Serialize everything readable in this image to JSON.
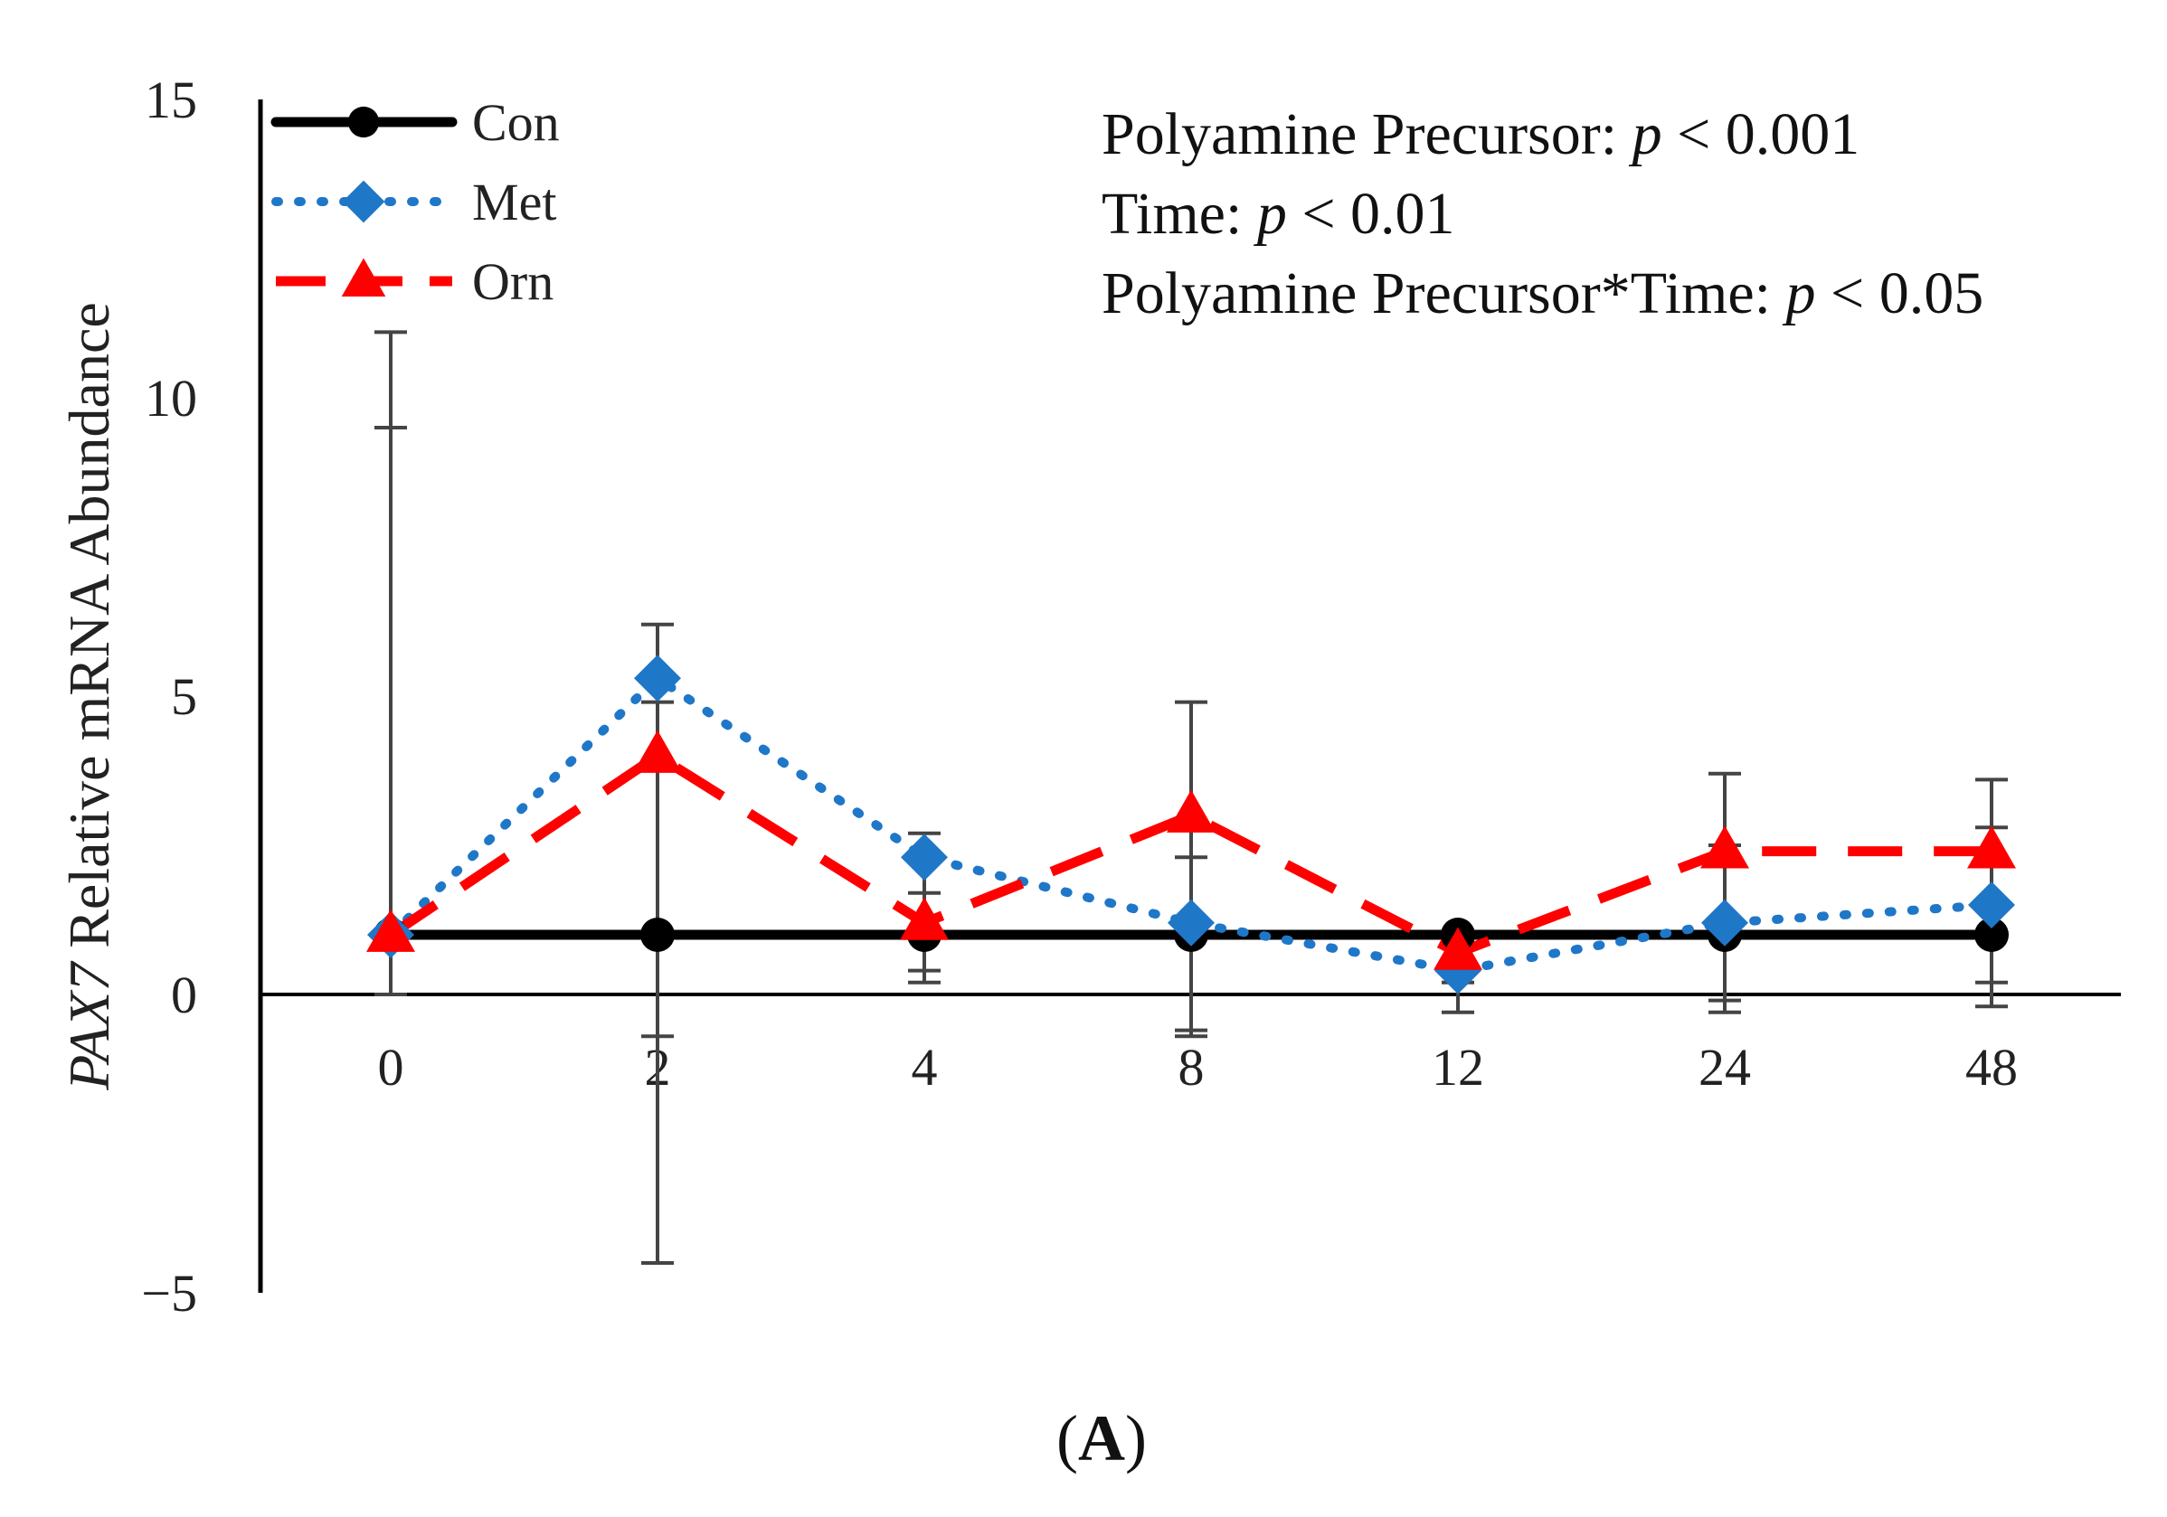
{
  "chart_data": {
    "type": "line",
    "categories": [
      "0",
      "2",
      "4",
      "8",
      "12",
      "24",
      "48"
    ],
    "ylim": [
      -5,
      15
    ],
    "yticks": [
      -5,
      0,
      5,
      10,
      15
    ],
    "ylabel_italic": "PAX7",
    "ylabel_rest": " Relative mRNA Abundance",
    "xlabel": "",
    "grid": false,
    "legend_position": "top-left",
    "series": [
      {
        "name": "Con",
        "color": "#000000",
        "marker": "circle",
        "linestyle": "solid",
        "values": [
          1,
          1,
          1,
          1,
          1,
          1,
          1
        ],
        "err_upper": [
          0,
          0,
          0,
          0,
          0,
          0,
          0
        ],
        "err_lower": [
          0,
          0,
          0,
          0,
          0,
          0,
          0
        ]
      },
      {
        "name": "Met",
        "color": "#1f77c8",
        "marker": "diamond",
        "linestyle": "dotted",
        "values": [
          1.0,
          5.3,
          2.3,
          1.2,
          0.4,
          1.2,
          1.5
        ],
        "err_upper": [
          11.1,
          6.2,
          2.7,
          2.3,
          1.0,
          2.5,
          2.8
        ],
        "err_lower": [
          0.0,
          -4.5,
          0.2,
          -0.6,
          -0.3,
          -0.3,
          -0.2
        ]
      },
      {
        "name": "Orn",
        "color": "#ff0000",
        "marker": "triangle",
        "linestyle": "dashed",
        "values": [
          1.0,
          4.0,
          1.2,
          3.0,
          0.7,
          2.4,
          2.4
        ],
        "err_upper": [
          9.5,
          4.9,
          1.7,
          4.9,
          0.9,
          3.7,
          3.6
        ],
        "err_lower": [
          0.0,
          -0.7,
          0.4,
          -0.7,
          0.2,
          -0.1,
          0.2
        ]
      }
    ],
    "annotations": [
      {
        "label": "Polyamine Precursor: ",
        "p": "p",
        "rest": " < 0.001"
      },
      {
        "label": "Time: ",
        "p": "p",
        "rest": " < 0.01"
      },
      {
        "label": "Polyamine Precursor*Time: ",
        "p": "p",
        "rest": " < 0.05"
      }
    ],
    "panel_label": "(A)"
  }
}
